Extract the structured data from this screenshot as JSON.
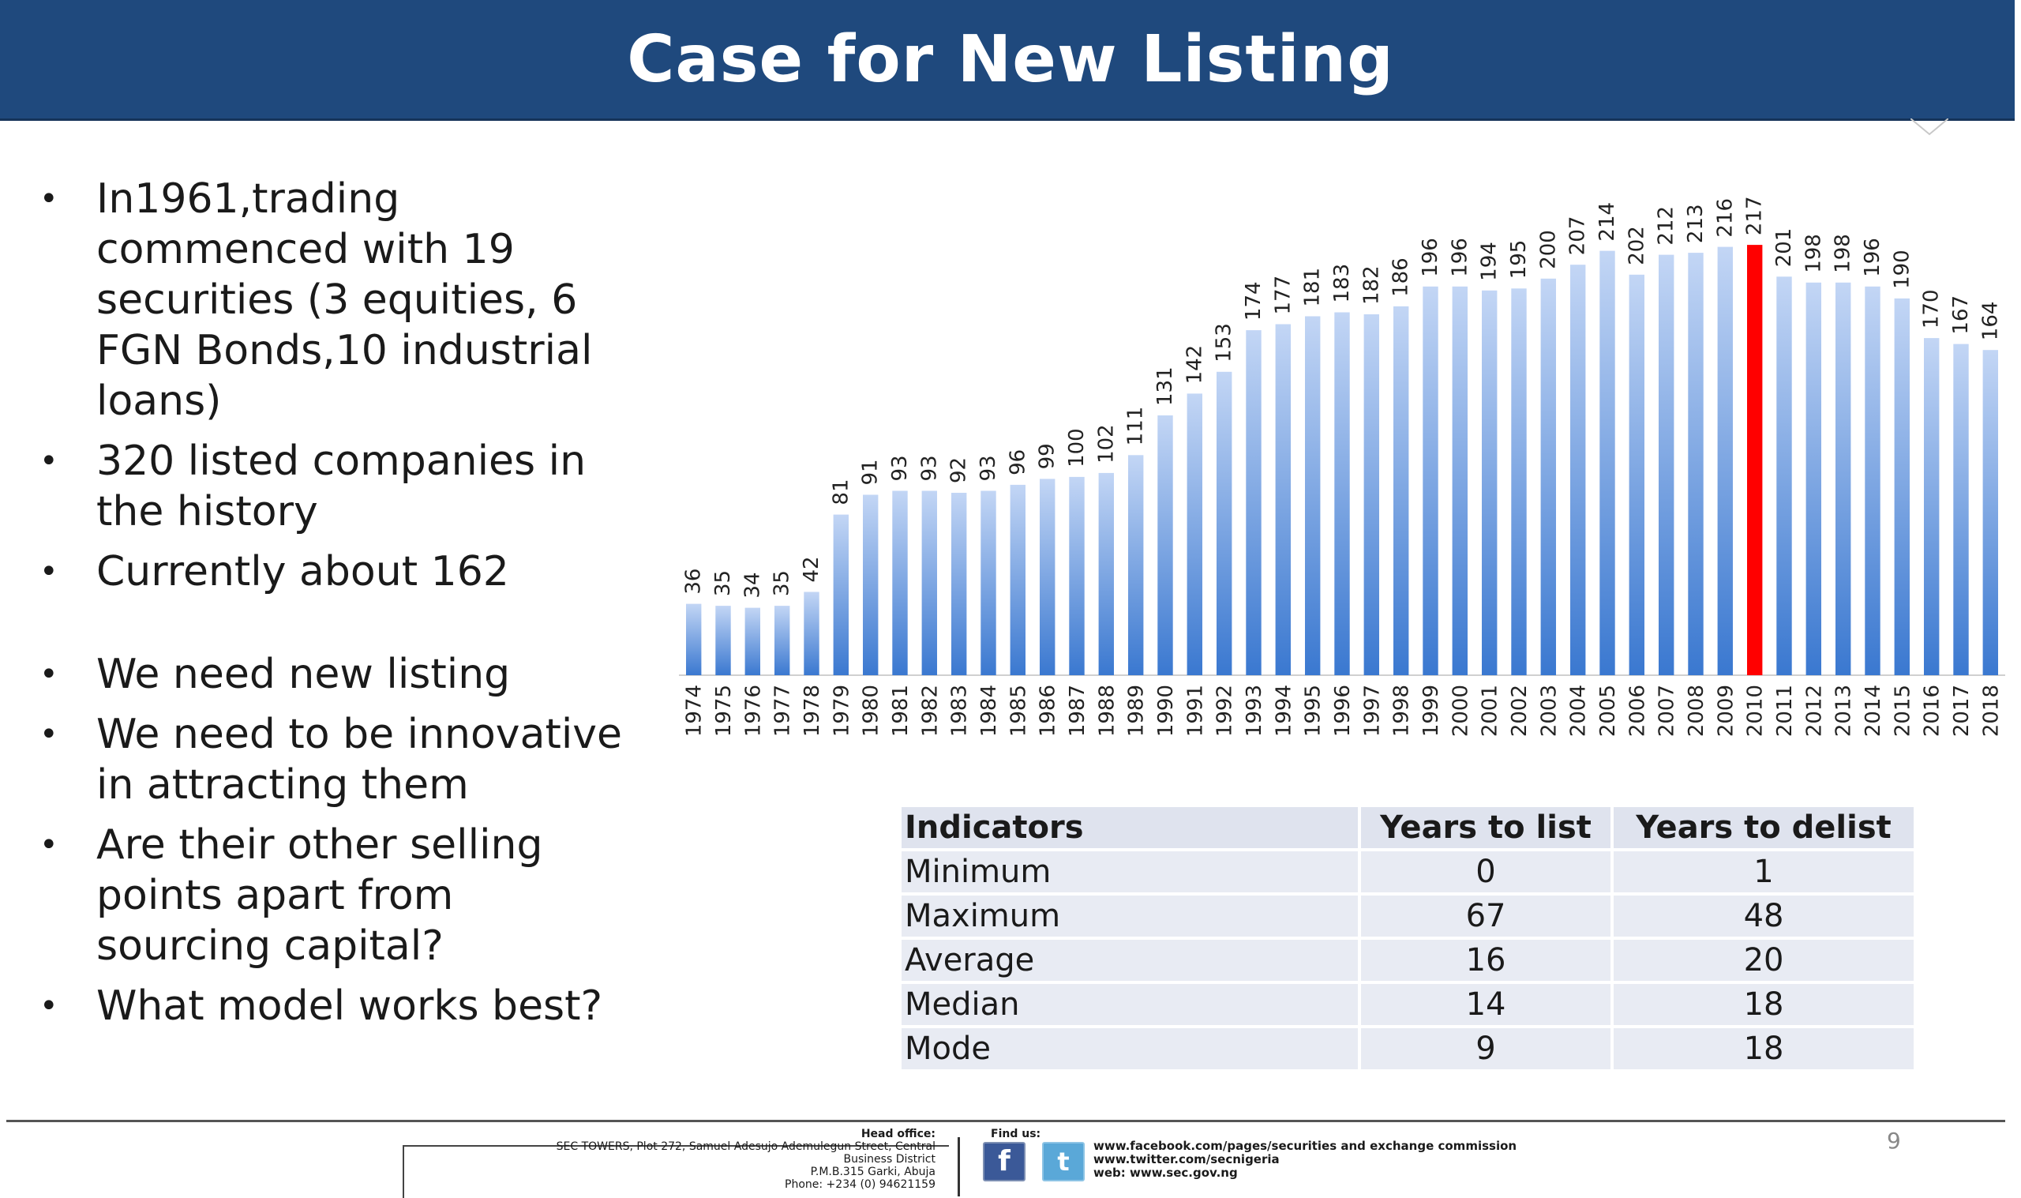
{
  "slide": {
    "title": "Case for New Listing",
    "bullets": [
      "In1961,trading commenced with 19 securities (3 equities, 6 FGN Bonds,10 industrial loans)",
      "320 listed companies in the history",
      "Currently about 162",
      "We need new listing",
      "We need to be innovative in attracting them",
      "Are their other selling points apart from sourcing capital?",
      "What model works best?"
    ],
    "bullet_char": "•",
    "page_number": "9"
  },
  "chart_data": {
    "type": "bar",
    "title": "",
    "xlabel": "",
    "ylabel": "",
    "categories": [
      "1974",
      "1975",
      "1976",
      "1977",
      "1978",
      "1979",
      "1980",
      "1981",
      "1982",
      "1983",
      "1984",
      "1985",
      "1986",
      "1987",
      "1988",
      "1989",
      "1990",
      "1991",
      "1992",
      "1993",
      "1994",
      "1995",
      "1996",
      "1997",
      "1998",
      "1999",
      "2000",
      "2001",
      "2002",
      "2003",
      "2004",
      "2005",
      "2006",
      "2007",
      "2008",
      "2009",
      "2010",
      "2011",
      "2012",
      "2013",
      "2014",
      "2015",
      "2016",
      "2017",
      "2018"
    ],
    "values": [
      36,
      35,
      34,
      35,
      42,
      81,
      91,
      93,
      93,
      92,
      93,
      96,
      99,
      100,
      102,
      111,
      131,
      142,
      153,
      174,
      177,
      181,
      183,
      182,
      186,
      196,
      196,
      194,
      195,
      200,
      207,
      214,
      202,
      212,
      213,
      216,
      217,
      201,
      198,
      198,
      196,
      190,
      170,
      167,
      164
    ],
    "highlight_category": "2010",
    "ylim": [
      0,
      225
    ],
    "data_labels": true,
    "axis_line": "bottom",
    "grid": false,
    "legend": "none",
    "colors": {
      "bar_top": "#c3d6f5",
      "bar_bottom": "#3a78d0",
      "highlight": "#ff0000",
      "axis": "#d0d0d0"
    }
  },
  "table": {
    "headers": [
      "Indicators",
      "Years to list",
      "Years to delist"
    ],
    "rows": [
      [
        "Minimum",
        "0",
        "1"
      ],
      [
        "Maximum",
        "67",
        "48"
      ],
      [
        "Average",
        "16",
        "20"
      ],
      [
        "Median",
        "14",
        "18"
      ],
      [
        "Mode",
        "9",
        "18"
      ]
    ]
  },
  "footer": {
    "head_office_title": "Head office:",
    "address_lines": [
      "SEC TOWERS, Plot 272, Samuel Adesujo Ademulegun Street, Central",
      "Business District",
      "P.M.B.315 Garki, Abuja",
      "Phone: +234 (0) 94621159"
    ],
    "find_us": "Find us:",
    "facebook_glyph": "f",
    "twitter_glyph": "t",
    "social_lines": [
      "www.facebook.com/pages/securities and exchange commission",
      "www.twitter.com/secnigeria",
      "web: www.sec.gov.ng"
    ]
  }
}
